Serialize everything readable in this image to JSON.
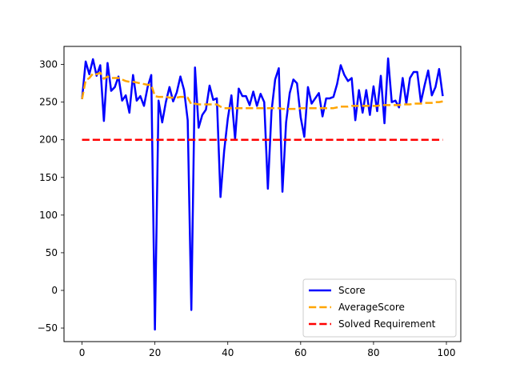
{
  "chart_data": {
    "type": "line",
    "title": "",
    "xlabel": "",
    "ylabel": "",
    "xlim": [
      -4.95,
      103.95
    ],
    "ylim": [
      -68,
      324
    ],
    "xticks": [
      0,
      20,
      40,
      60,
      80,
      100
    ],
    "yticks": [
      -50,
      0,
      50,
      100,
      150,
      200,
      250,
      300
    ],
    "xtick_labels": [
      "0",
      "20",
      "40",
      "60",
      "80",
      "100"
    ],
    "ytick_labels": [
      "−50",
      "0",
      "50",
      "100",
      "150",
      "200",
      "250",
      "300"
    ],
    "grid": false,
    "legend_position": "lower-right",
    "x": [
      0,
      1,
      2,
      3,
      4,
      5,
      6,
      7,
      8,
      9,
      10,
      11,
      12,
      13,
      14,
      15,
      16,
      17,
      18,
      19,
      20,
      21,
      22,
      23,
      24,
      25,
      26,
      27,
      28,
      29,
      30,
      31,
      32,
      33,
      34,
      35,
      36,
      37,
      38,
      39,
      40,
      41,
      42,
      43,
      44,
      45,
      46,
      47,
      48,
      49,
      50,
      51,
      52,
      53,
      54,
      55,
      56,
      57,
      58,
      59,
      60,
      61,
      62,
      63,
      64,
      65,
      66,
      67,
      68,
      69,
      70,
      71,
      72,
      73,
      74,
      75,
      76,
      77,
      78,
      79,
      80,
      81,
      82,
      83,
      84,
      85,
      86,
      87,
      88,
      89,
      90,
      91,
      92,
      93,
      94,
      95,
      96,
      97,
      98,
      99
    ],
    "series": [
      {
        "name": "Score",
        "color": "#0000ff",
        "style": "solid",
        "values": [
          254,
          304,
          287,
          307,
          285,
          299,
          225,
          302,
          265,
          270,
          284,
          252,
          259,
          236,
          286,
          252,
          258,
          245,
          270,
          286,
          -52,
          252,
          223,
          250,
          270,
          251,
          263,
          284,
          266,
          226,
          -26,
          296,
          216,
          233,
          240,
          272,
          253,
          255,
          124,
          185,
          228,
          259,
          201,
          268,
          258,
          258,
          246,
          264,
          245,
          261,
          250,
          135,
          238,
          280,
          295,
          131,
          223,
          262,
          280,
          275,
          230,
          204,
          270,
          248,
          255,
          262,
          231,
          255,
          255,
          257,
          274,
          299,
          286,
          278,
          282,
          226,
          266,
          236,
          266,
          233,
          271,
          238,
          285,
          222,
          308,
          250,
          252,
          243,
          282,
          248,
          282,
          290,
          290,
          250,
          272,
          292,
          259,
          270,
          294,
          258
        ]
      },
      {
        "name": "AverageScore",
        "color": "#ffa500",
        "style": "dashed",
        "values": [
          254,
          279,
          282,
          288,
          287,
          289,
          281,
          284,
          282,
          282,
          282,
          280,
          278,
          277,
          277,
          276,
          275,
          274,
          273,
          273,
          258,
          257,
          257,
          257,
          256,
          256,
          256,
          257,
          257,
          256,
          247,
          248,
          247,
          247,
          247,
          247,
          247,
          247,
          244,
          242,
          242,
          242,
          242,
          242,
          242,
          242,
          242,
          242,
          242,
          242,
          242,
          242,
          242,
          242,
          242,
          241,
          241,
          241,
          241,
          241,
          242,
          242,
          242,
          242,
          242,
          242,
          242,
          242,
          242,
          242,
          243,
          244,
          244,
          244,
          245,
          245,
          245,
          245,
          245,
          245,
          245,
          245,
          246,
          246,
          246,
          246,
          246,
          246,
          247,
          247,
          247,
          248,
          248,
          248,
          249,
          249,
          249,
          250,
          250,
          251
        ]
      },
      {
        "name": "Solved Requirement",
        "color": "#ff0000",
        "style": "dashed",
        "values": [
          200,
          200,
          200,
          200,
          200,
          200,
          200,
          200,
          200,
          200,
          200,
          200,
          200,
          200,
          200,
          200,
          200,
          200,
          200,
          200,
          200,
          200,
          200,
          200,
          200,
          200,
          200,
          200,
          200,
          200,
          200,
          200,
          200,
          200,
          200,
          200,
          200,
          200,
          200,
          200,
          200,
          200,
          200,
          200,
          200,
          200,
          200,
          200,
          200,
          200,
          200,
          200,
          200,
          200,
          200,
          200,
          200,
          200,
          200,
          200,
          200,
          200,
          200,
          200,
          200,
          200,
          200,
          200,
          200,
          200,
          200,
          200,
          200,
          200,
          200,
          200,
          200,
          200,
          200,
          200,
          200,
          200,
          200,
          200,
          200,
          200,
          200,
          200,
          200,
          200,
          200,
          200,
          200,
          200,
          200,
          200,
          200,
          200,
          200,
          200
        ]
      }
    ]
  }
}
